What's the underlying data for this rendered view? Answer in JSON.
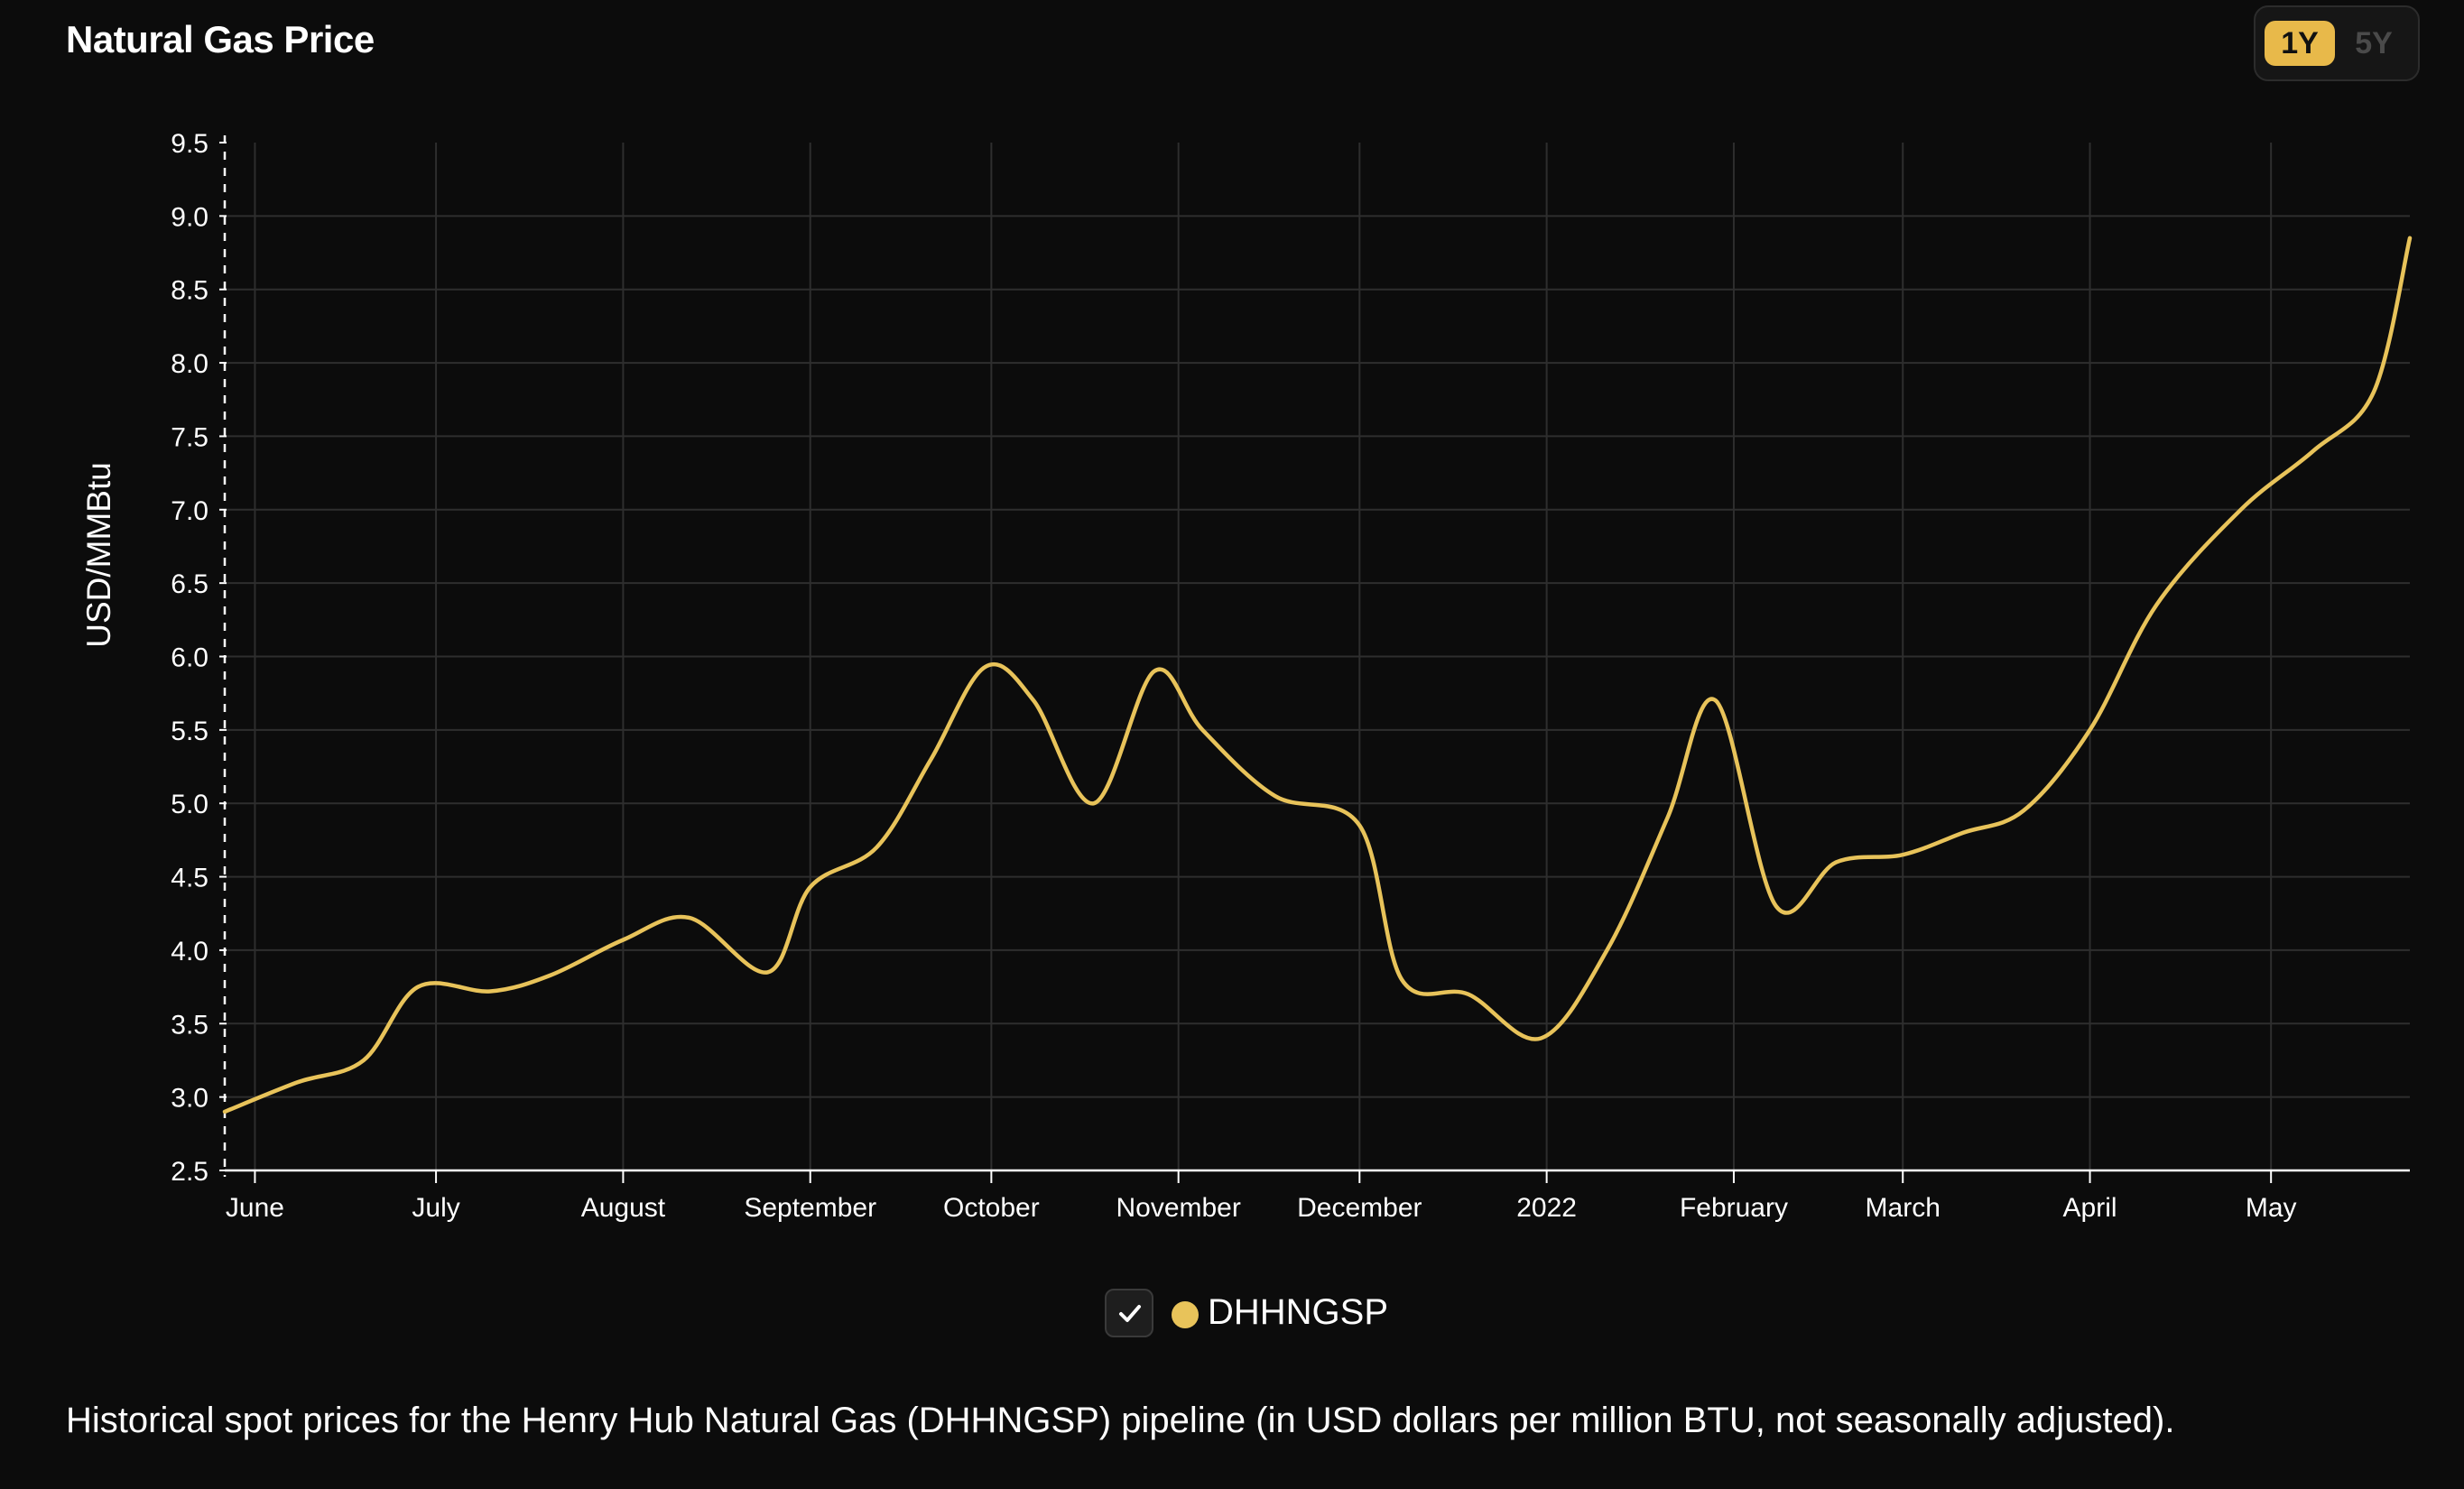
{
  "header": {
    "title": "Natural Gas Price",
    "range_options": [
      "1Y",
      "5Y"
    ],
    "selected_range": "1Y"
  },
  "colors": {
    "background": "#0c0c0c",
    "series": "#e8c35a",
    "grid": "#2e2e2e",
    "axis": "#ffffff",
    "accent": "#e8b94a"
  },
  "legend": {
    "checked": true,
    "series_name": "DHHNGSP"
  },
  "caption": "Historical spot prices for the Henry Hub Natural Gas (DHHNGSP) pipeline (in USD dollars per million BTU, not seasonally adjusted).",
  "chart_data": {
    "type": "line",
    "title": "Natural Gas Price",
    "ylabel": "USD/MMBtu",
    "xlabel": "",
    "x_ticks": [
      "June",
      "July",
      "August",
      "September",
      "October",
      "November",
      "December",
      "2022",
      "February",
      "March",
      "April",
      "May"
    ],
    "x_tick_dates": [
      "2021-06-01",
      "2021-07-01",
      "2021-08-01",
      "2021-09-01",
      "2021-10-01",
      "2021-11-01",
      "2021-12-01",
      "2022-01-01",
      "2022-02-01",
      "2022-03-01",
      "2022-04-01",
      "2022-05-01"
    ],
    "y_ticks": [
      "2.5",
      "3.0",
      "3.5",
      "4.0",
      "4.5",
      "5.0",
      "5.5",
      "6.0",
      "6.5",
      "7.0",
      "7.5",
      "8.0",
      "8.5",
      "9.0",
      "9.5"
    ],
    "ylim": [
      2.5,
      9.5
    ],
    "xlim": [
      "2021-05-27",
      "2022-05-24"
    ],
    "grid": true,
    "legend_position": "bottom-center",
    "series": [
      {
        "name": "DHHNGSP",
        "points": [
          {
            "x": "2021-05-27",
            "y": 2.9
          },
          {
            "x": "2021-06-08",
            "y": 3.1
          },
          {
            "x": "2021-06-19",
            "y": 3.25
          },
          {
            "x": "2021-06-28",
            "y": 3.75
          },
          {
            "x": "2021-07-10",
            "y": 3.72
          },
          {
            "x": "2021-07-20",
            "y": 3.83
          },
          {
            "x": "2021-08-01",
            "y": 4.07
          },
          {
            "x": "2021-08-12",
            "y": 4.22
          },
          {
            "x": "2021-08-25",
            "y": 3.85
          },
          {
            "x": "2021-09-01",
            "y": 4.43
          },
          {
            "x": "2021-09-12",
            "y": 4.7
          },
          {
            "x": "2021-09-21",
            "y": 5.3
          },
          {
            "x": "2021-09-30",
            "y": 5.93
          },
          {
            "x": "2021-10-08",
            "y": 5.7
          },
          {
            "x": "2021-10-18",
            "y": 5.0
          },
          {
            "x": "2021-10-28",
            "y": 5.9
          },
          {
            "x": "2021-11-05",
            "y": 5.5
          },
          {
            "x": "2021-11-17",
            "y": 5.05
          },
          {
            "x": "2021-12-01",
            "y": 4.85
          },
          {
            "x": "2021-12-08",
            "y": 3.8
          },
          {
            "x": "2021-12-19",
            "y": 3.7
          },
          {
            "x": "2021-12-31",
            "y": 3.4
          },
          {
            "x": "2022-01-11",
            "y": 4.0
          },
          {
            "x": "2022-01-21",
            "y": 4.9
          },
          {
            "x": "2022-01-29",
            "y": 5.7
          },
          {
            "x": "2022-02-08",
            "y": 4.3
          },
          {
            "x": "2022-02-18",
            "y": 4.6
          },
          {
            "x": "2022-03-01",
            "y": 4.65
          },
          {
            "x": "2022-03-11",
            "y": 4.8
          },
          {
            "x": "2022-03-21",
            "y": 4.95
          },
          {
            "x": "2022-04-01",
            "y": 5.5
          },
          {
            "x": "2022-04-12",
            "y": 6.35
          },
          {
            "x": "2022-04-26",
            "y": 7.0
          },
          {
            "x": "2022-05-08",
            "y": 7.4
          },
          {
            "x": "2022-05-18",
            "y": 7.8
          },
          {
            "x": "2022-05-24",
            "y": 8.85
          }
        ]
      }
    ]
  }
}
